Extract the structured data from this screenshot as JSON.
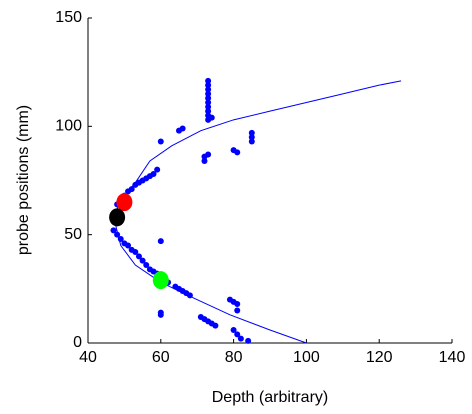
{
  "chart_data": {
    "type": "scatter",
    "xlabel": "Depth  (arbitrary)",
    "ylabel": "probe positions (mm)",
    "xlim": [
      40,
      140
    ],
    "xticks": [
      40,
      60,
      80,
      100,
      120,
      140
    ],
    "ylim": [
      0,
      150
    ],
    "yticks": [
      0,
      50,
      100,
      150
    ],
    "grid": false,
    "series": [
      {
        "mode": "markers",
        "color": "#0000ff",
        "x": [
          48,
          49,
          50,
          51,
          52,
          53,
          54,
          55,
          56,
          57,
          58,
          59,
          47,
          48,
          49,
          50,
          51,
          52,
          53,
          54,
          55,
          56,
          57,
          58,
          59,
          60,
          62,
          64,
          65,
          66,
          67,
          68,
          73,
          73,
          73,
          73,
          73,
          73,
          73,
          73,
          73,
          73,
          74,
          72,
          72,
          73,
          65,
          66,
          60,
          80,
          81,
          85,
          85,
          85,
          60,
          60,
          60,
          71,
          72,
          73,
          74,
          75,
          79,
          80,
          81,
          81,
          80,
          81,
          82,
          84
        ],
        "values": [
          64,
          66,
          68,
          70,
          71,
          73,
          74,
          75,
          76,
          77,
          78,
          80,
          52,
          50,
          48,
          46,
          45,
          43,
          42,
          40,
          38,
          36,
          34,
          33,
          32,
          30,
          28,
          26,
          25,
          24,
          23,
          22,
          103,
          105,
          107,
          109,
          111,
          113,
          115,
          117,
          119,
          121,
          104,
          84,
          86,
          87,
          98,
          99,
          93,
          89,
          88,
          93,
          95,
          97,
          47,
          13,
          14,
          12,
          11,
          10,
          9,
          8,
          20,
          19,
          18,
          15,
          6,
          4,
          2,
          1
        ]
      },
      {
        "mode": "line",
        "color": "#0000ff",
        "x": [
          100,
          90,
          79,
          70,
          60,
          53,
          49,
          47.5,
          48,
          50,
          53,
          57,
          63,
          71,
          80,
          90,
          100,
          110,
          120,
          126
        ],
        "values": [
          0,
          6,
          13,
          20,
          28,
          36,
          45,
          55,
          62,
          68,
          74,
          84,
          91,
          98,
          103,
          107,
          111,
          115,
          119,
          121
        ]
      },
      {
        "mode": "big",
        "color": "#ff0000",
        "x": [
          50
        ],
        "values": [
          65
        ]
      },
      {
        "mode": "big",
        "color": "#000000",
        "x": [
          48
        ],
        "values": [
          58
        ]
      },
      {
        "mode": "big",
        "color": "#00ff00",
        "x": [
          60
        ],
        "values": [
          29
        ]
      }
    ]
  }
}
